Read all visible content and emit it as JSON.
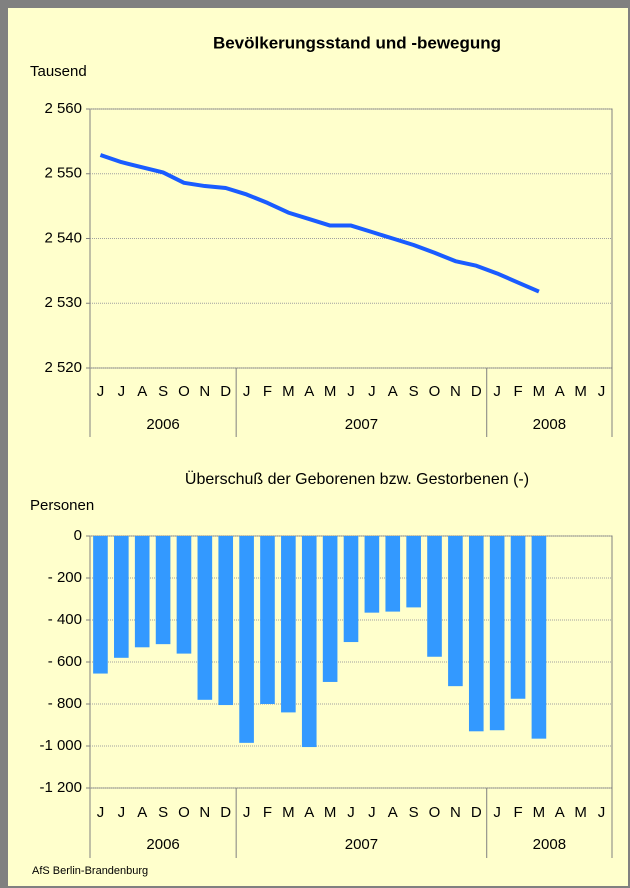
{
  "chart_data": [
    {
      "type": "line",
      "title": "Bevölkerungsstand und -bewegung",
      "y_label": "Tausend",
      "categories": [
        "J",
        "J",
        "A",
        "S",
        "O",
        "N",
        "D",
        "J",
        "F",
        "M",
        "A",
        "M",
        "J",
        "J",
        "A",
        "S",
        "O",
        "N",
        "D",
        "J",
        "F",
        "M",
        "A",
        "M",
        "J"
      ],
      "x_groups": [
        {
          "label": "2006",
          "count": 7
        },
        {
          "label": "2007",
          "count": 12
        },
        {
          "label": "2008",
          "count": 6
        }
      ],
      "values": [
        2552.9,
        2551.8,
        2551.0,
        2550.2,
        2548.6,
        2548.1,
        2547.8,
        2546.8,
        2545.5,
        2544.0,
        2543.0,
        2542.0,
        2542.0,
        2541.0,
        2540.0,
        2539.0,
        2537.8,
        2536.5,
        2535.8,
        2534.6,
        2533.2,
        2531.8,
        null,
        null,
        null
      ],
      "color": "#1a5cff",
      "ylim": [
        2520,
        2560
      ],
      "yticks": [
        {
          "value": 2520,
          "label": "2 520"
        },
        {
          "value": 2530,
          "label": "2 530"
        },
        {
          "value": 2540,
          "label": "2 540"
        },
        {
          "value": 2550,
          "label": "2 550"
        },
        {
          "value": 2560,
          "label": "2 560"
        }
      ],
      "grid": true
    },
    {
      "type": "bar",
      "title": "Überschuß der Geborenen bzw. Gestorbenen (-)",
      "y_label": "Personen",
      "categories": [
        "J",
        "J",
        "A",
        "S",
        "O",
        "N",
        "D",
        "J",
        "F",
        "M",
        "A",
        "M",
        "J",
        "J",
        "A",
        "S",
        "O",
        "N",
        "D",
        "J",
        "F",
        "M",
        "A",
        "M",
        "J"
      ],
      "x_groups": [
        {
          "label": "2006",
          "count": 7
        },
        {
          "label": "2007",
          "count": 12
        },
        {
          "label": "2008",
          "count": 6
        }
      ],
      "values": [
        -655,
        -580,
        -530,
        -515,
        -560,
        -780,
        -805,
        -985,
        -800,
        -840,
        -1005,
        -695,
        -505,
        -365,
        -360,
        -340,
        -575,
        -715,
        -930,
        -925,
        -775,
        -965,
        null,
        null,
        null
      ],
      "color": "#3399ff",
      "ylim": [
        -1200,
        0
      ],
      "yticks": [
        {
          "value": -1200,
          "label": "-1 200"
        },
        {
          "value": -1000,
          "label": "-1 000"
        },
        {
          "value": -800,
          "label": "- 800"
        },
        {
          "value": -600,
          "label": "- 600"
        },
        {
          "value": -400,
          "label": "- 400"
        },
        {
          "value": -200,
          "label": "- 200"
        },
        0
      ],
      "grid": true
    }
  ],
  "source": "AfS Berlin-Brandenburg"
}
